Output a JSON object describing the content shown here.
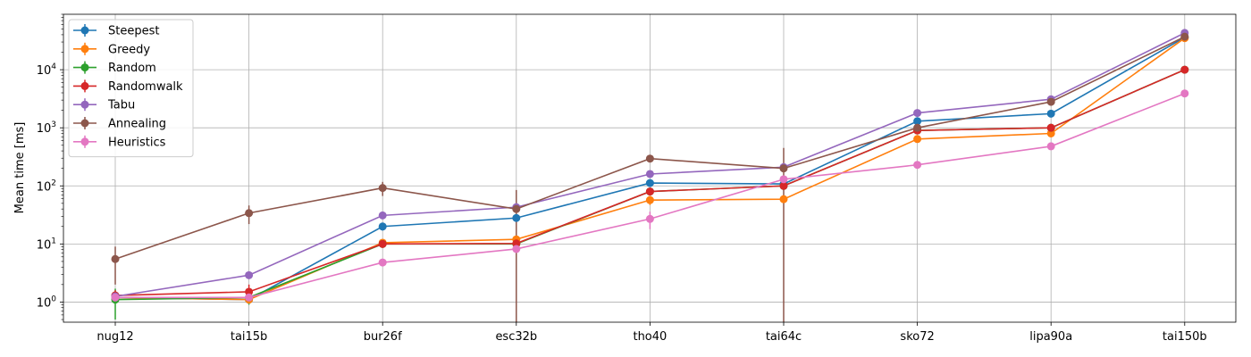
{
  "chart_data": {
    "type": "line",
    "title": "",
    "xlabel": "",
    "ylabel": "Mean time [ms]",
    "yscale": "log",
    "ylim": [
      0.45,
      90000
    ],
    "grid": true,
    "legend_position": "top-left",
    "categories": [
      "nug12",
      "tai15b",
      "bur26f",
      "esc32b",
      "tho40",
      "tai64c",
      "sko72",
      "lipa90a",
      "tai150b"
    ],
    "y_ticks": [
      {
        "value": 1,
        "base": "10",
        "exp": "0"
      },
      {
        "value": 10,
        "base": "10",
        "exp": "1"
      },
      {
        "value": 100,
        "base": "10",
        "exp": "2"
      },
      {
        "value": 1000,
        "base": "10",
        "exp": "3"
      },
      {
        "value": 10000,
        "base": "10",
        "exp": "4"
      }
    ],
    "series": [
      {
        "name": "Steepest",
        "color": "#1f77b4",
        "values": [
          1.2,
          1.1,
          20,
          28,
          112,
          108,
          1300,
          1750,
          36000
        ],
        "errors": [
          0.15,
          0.1,
          3,
          3,
          10,
          12,
          80,
          100,
          1500
        ]
      },
      {
        "name": "Greedy",
        "color": "#ff7f0e",
        "values": [
          1.2,
          1.1,
          10.5,
          12,
          57,
          59,
          640,
          800,
          35000
        ],
        "errors": [
          0.15,
          0.1,
          1.5,
          2,
          10,
          8,
          50,
          60,
          1500
        ]
      },
      {
        "name": "Random",
        "color": "#2ca02c",
        "values": [
          1.1,
          1.2,
          10,
          10,
          80,
          100,
          900,
          1000,
          10000
        ],
        "errors": [
          0.6,
          0.3,
          1,
          1,
          5,
          8,
          50,
          60,
          300
        ]
      },
      {
        "name": "Randomwalk",
        "color": "#d62728",
        "values": [
          1.3,
          1.5,
          10,
          10.2,
          80,
          100,
          900,
          1000,
          10000
        ],
        "errors": [
          0.3,
          0.5,
          1,
          1,
          5,
          8,
          50,
          60,
          300
        ]
      },
      {
        "name": "Tabu",
        "color": "#9467bd",
        "values": [
          1.25,
          2.9,
          31,
          43,
          160,
          210,
          1800,
          3100,
          43000
        ],
        "errors": [
          0.1,
          0.3,
          3,
          5,
          10,
          15,
          100,
          150,
          2000
        ]
      },
      {
        "name": "Annealing",
        "color": "#8c564b",
        "values": [
          5.5,
          34,
          92,
          40,
          295,
          200,
          1000,
          2800,
          37000
        ],
        "errors": [
          3.5,
          12,
          25,
          45,
          20,
          250,
          60,
          150,
          2000
        ]
      },
      {
        "name": "Heuristics",
        "color": "#e377c2",
        "values": [
          1.2,
          1.2,
          4.8,
          8.2,
          27,
          130,
          230,
          480,
          3900
        ],
        "errors": [
          0.1,
          0.1,
          0.5,
          1,
          9,
          15,
          20,
          40,
          200
        ]
      }
    ]
  }
}
